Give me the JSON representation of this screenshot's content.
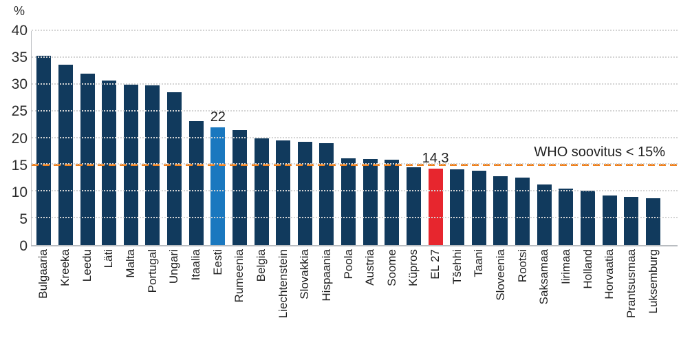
{
  "figure": {
    "y_unit_label": "%"
  },
  "colors": {
    "bar_default": "#113a5d",
    "bar_highlight_blue": "#1a78bf",
    "bar_highlight_red": "#e7262e",
    "reference_line": "#f0821f",
    "gridline": "#d4d4d4",
    "axis": "#b9bdc1",
    "text": "#1f1f1f"
  },
  "chart_data": {
    "type": "bar",
    "title": "",
    "xlabel": "",
    "ylabel": "%",
    "ylim": [
      0,
      40
    ],
    "yticks": [
      0,
      5,
      10,
      15,
      20,
      25,
      30,
      35,
      40
    ],
    "grid": "horizontal-dotted",
    "legend": "none",
    "reference_line": {
      "value": 15,
      "label": "WHO soovitus < 15%",
      "style": "dashed",
      "color": "#f0821f"
    },
    "categories": [
      "Bulgaaria",
      "Kreeka",
      "Leedu",
      "Läti",
      "Malta",
      "Portugal",
      "Ungari",
      "Itaalia",
      "Eesti",
      "Rumeenia",
      "Belgia",
      "Liechtenstein",
      "Slovakkia",
      "Hispaania",
      "Poola",
      "Austria",
      "Soome",
      "Küpros",
      "EL 27",
      "Tšehhi",
      "Taani",
      "Sloveenia",
      "Rootsi",
      "Saksamaa",
      "Iirimaa",
      "Holland",
      "Horvaatia",
      "Prantsusmaa",
      "Luksemburg"
    ],
    "values": [
      35.4,
      33.7,
      32.0,
      30.8,
      30.0,
      29.9,
      28.5,
      23.2,
      22,
      21.5,
      20.0,
      19.6,
      19.3,
      19.1,
      16.2,
      16.1,
      16.0,
      14.6,
      14.3,
      14.1,
      13.9,
      12.9,
      12.6,
      11.3,
      10.6,
      10.1,
      9.2,
      9.0,
      8.7
    ],
    "highlights": [
      {
        "category": "Eesti",
        "color": "#1a78bf",
        "data_label": "22"
      },
      {
        "category": "EL 27",
        "color": "#e7262e",
        "data_label": "14,3"
      }
    ]
  }
}
